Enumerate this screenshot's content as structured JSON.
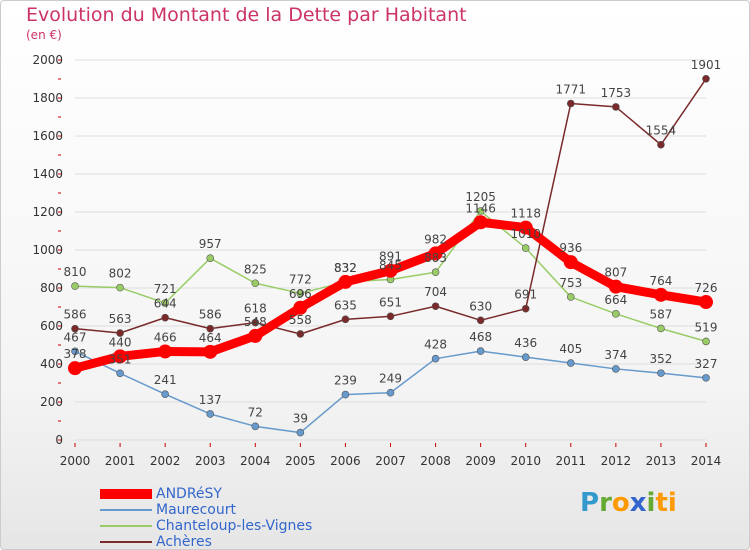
{
  "header": {
    "title": "Evolution du Montant de la Dette par Habitant",
    "subtitle": "(en €)"
  },
  "logo": {
    "text": "Proxiti"
  },
  "colors": {
    "title": "#cc3366",
    "legend_text": "#3366cc",
    "grid": "#dddddd",
    "tick_marks": "#cc0000"
  },
  "chart_data": {
    "type": "line",
    "title": "Evolution du Montant de la Dette par Habitant",
    "subtitle": "(en €)",
    "xlabel": "",
    "ylabel": "",
    "x": [
      "2000",
      "2001",
      "2002",
      "2003",
      "2004",
      "2005",
      "2006",
      "2007",
      "2008",
      "2009",
      "2010",
      "2011",
      "2012",
      "2013",
      "2014"
    ],
    "ylim": [
      0,
      2000
    ],
    "yticks": [
      0,
      200,
      400,
      600,
      800,
      1000,
      1200,
      1400,
      1600,
      1800,
      2000
    ],
    "grid": true,
    "legend_position": "bottom-left",
    "series": [
      {
        "name": "ANDRéSY",
        "color": "#ff0000",
        "values": [
          378,
          440,
          466,
          464,
          548,
          696,
          832,
          891,
          982,
          1146,
          1118,
          936,
          807,
          764,
          726
        ],
        "labels": [
          "378",
          "440",
          "466",
          "464",
          "548",
          "696",
          "832",
          "891",
          "982",
          "1146",
          "1118",
          "936",
          "807",
          "764",
          "726"
        ],
        "emphasis": true
      },
      {
        "name": "Maurecourt",
        "color": "#6699cc",
        "values": [
          467,
          351,
          241,
          137,
          72,
          39,
          239,
          249,
          428,
          468,
          436,
          405,
          374,
          352,
          327
        ],
        "labels": [
          "467",
          "351",
          "241",
          "137",
          "72",
          "39",
          "239",
          "249",
          "428",
          "468",
          "436",
          "405",
          "374",
          "352",
          "327"
        ]
      },
      {
        "name": "Chanteloup-les-Vignes",
        "color": "#99cc66",
        "values": [
          810,
          802,
          721,
          957,
          825,
          772,
          832,
          845,
          883,
          1205,
          1010,
          753,
          664,
          587,
          519
        ],
        "labels": [
          "810",
          "802",
          "721",
          "957",
          "825",
          "772",
          "832",
          "845",
          "883",
          "1205",
          "1010",
          "753",
          "664",
          "587",
          "519"
        ]
      },
      {
        "name": "Achères",
        "color": "#7a2a2a",
        "values": [
          586,
          563,
          644,
          586,
          618,
          558,
          635,
          651,
          704,
          630,
          691,
          1771,
          1753,
          1554,
          1901
        ],
        "labels": [
          "586",
          "563",
          "644",
          "586",
          "618",
          "558",
          "635",
          "651",
          "704",
          "630",
          "691",
          "1771",
          "1753",
          "1554",
          "1901"
        ]
      }
    ]
  }
}
